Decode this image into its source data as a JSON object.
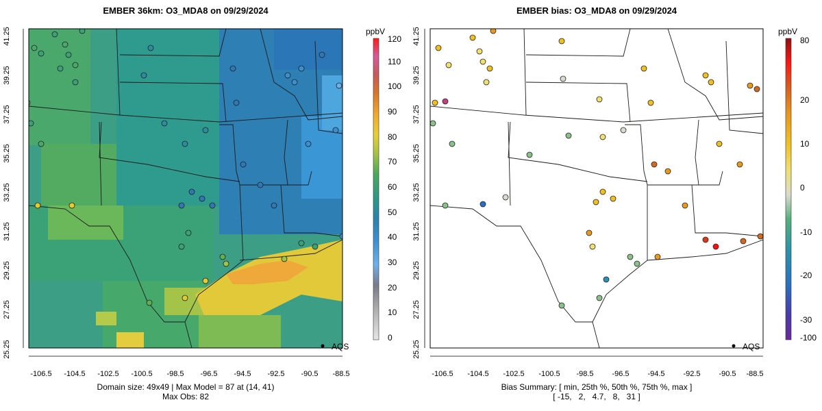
{
  "left_panel": {
    "title": "EMBER 36km: O3_MDA8 on 09/29/2024",
    "colorbar_unit": "ppbV",
    "colorbar_ticks": [
      "0",
      "10",
      "20",
      "30",
      "40",
      "50",
      "60",
      "70",
      "80",
      "90",
      "100",
      "110",
      "120"
    ],
    "footer_lines": [
      "Domain size: 49x49 | Max Model = 87 at (14, 41)",
      "Max Obs: 82"
    ],
    "legend_label": "AQS",
    "colors": {
      "scale": [
        "#d9d9d9",
        "#9a9a9a",
        "#6bb0e8",
        "#3a8fd0",
        "#2f78b6",
        "#2a8ea0",
        "#3aa07a",
        "#5fb04e",
        "#9cc445",
        "#e4cc30",
        "#f0b030",
        "#e08a20",
        "#d05a30",
        "#c04080",
        "#e83a7a",
        "#ff1f1f"
      ]
    }
  },
  "right_panel": {
    "title": "EMBER bias: O3_MDA8 on 09/29/2024",
    "colorbar_unit": "ppbV",
    "colorbar_ticks": [
      "-100",
      "-30",
      "-20",
      "-10",
      "0",
      "10",
      "20",
      "80"
    ],
    "footer_lines": [
      "Bias Summary: [ min, 25th %, 50th %, 75th %, max ]",
      "[ -15,   2,   4.7,   8,   31 ]"
    ],
    "legend_label": "AQS",
    "colors": {
      "scale": [
        "#6a2a9a",
        "#3a4aa8",
        "#2a6fc0",
        "#2f8fb0",
        "#3aa07a",
        "#8ac08a",
        "#d8dcd0",
        "#f0e070",
        "#f0c020",
        "#e89a20",
        "#d06a20",
        "#d83a1a",
        "#ff1010",
        "#a01010"
      ]
    }
  },
  "axes": {
    "x_ticks": [
      "-106.5",
      "-104.5",
      "-102.5",
      "-100.5",
      "-98.5",
      "-96.5",
      "-94.5",
      "-92.5",
      "-90.5",
      "-88.5"
    ],
    "y_ticks": [
      "25.25",
      "27.25",
      "29.25",
      "31.25",
      "33.25",
      "35.25",
      "37.25",
      "39.25",
      "41.25"
    ]
  }
}
